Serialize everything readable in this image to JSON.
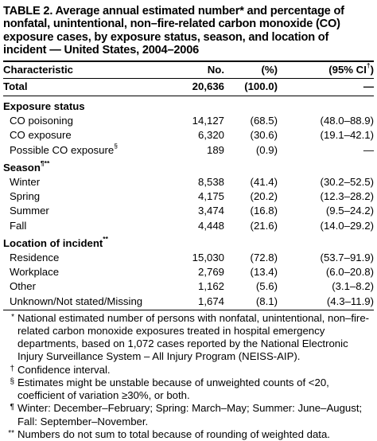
{
  "title": "TABLE 2. Average annual estimated number* and percentage of nonfatal, unintentional, non–fire-related carbon monoxide (CO) exposure cases, by exposure status, season, and location of incident — United States, 2004–2006",
  "header": {
    "characteristic": "Characteristic",
    "no": "No.",
    "pct": "(%)",
    "ci": "(95% CI",
    "ci_mark": "†",
    "ci_close": ")"
  },
  "total": {
    "label": "Total",
    "no": "20,636",
    "pct": "(100.0)",
    "ci": "—"
  },
  "sections": {
    "exposure": {
      "label": "Exposure status",
      "rows": [
        {
          "label": "CO poisoning",
          "mark": "",
          "no": "14,127",
          "pct": "(68.5)",
          "ci": "(48.0–88.9)"
        },
        {
          "label": "CO exposure",
          "mark": "",
          "no": "6,320",
          "pct": "(30.6)",
          "ci": "(19.1–42.1)"
        },
        {
          "label": "Possible CO exposure",
          "mark": "§",
          "no": "189",
          "pct": "(0.9)",
          "ci": "—"
        }
      ]
    },
    "season": {
      "label": "Season",
      "mark": "¶**",
      "rows": [
        {
          "label": "Winter",
          "no": "8,538",
          "pct": "(41.4)",
          "ci": "(30.2–52.5)"
        },
        {
          "label": "Spring",
          "no": "4,175",
          "pct": "(20.2)",
          "ci": "(12.3–28.2)"
        },
        {
          "label": "Summer",
          "no": "3,474",
          "pct": "(16.8)",
          "ci": "(9.5–24.2)"
        },
        {
          "label": "Fall",
          "no": "4,448",
          "pct": "(21.6)",
          "ci": "(14.0–29.2)"
        }
      ]
    },
    "location": {
      "label": "Location of incident",
      "mark": "**",
      "rows": [
        {
          "label": "Residence",
          "no": "15,030",
          "pct": "(72.8)",
          "ci": "(53.7–91.9)"
        },
        {
          "label": "Workplace",
          "no": "2,769",
          "pct": "(13.4)",
          "ci": "(6.0–20.8)"
        },
        {
          "label": "Other",
          "no": "1,162",
          "pct": "(5.6)",
          "ci": "(3.1–8.2)"
        },
        {
          "label": "Unknown/Not stated/Missing",
          "no": "1,674",
          "pct": "(8.1)",
          "ci": "(4.3–11.9)"
        }
      ]
    }
  },
  "footnotes": [
    {
      "mark": "*",
      "text": "National estimated number of persons with nonfatal, unintentional, non–fire-related carbon monoxide exposures treated in hospital emergency departments, based on 1,072 cases reported by the National Electronic Injury Surveillance System – All Injury Program (NEISS-AIP)."
    },
    {
      "mark": "†",
      "text": "Confidence interval."
    },
    {
      "mark": "§",
      "text": "Estimates might be unstable because of unweighted counts of <20, coefficient of variation ≥30%, or both."
    },
    {
      "mark": "¶",
      "text": "Winter: December–February; Spring: March–May; Summer: June–August; Fall: September–November."
    },
    {
      "mark": "**",
      "text": "Numbers do not sum to total because of rounding of weighted data."
    }
  ]
}
